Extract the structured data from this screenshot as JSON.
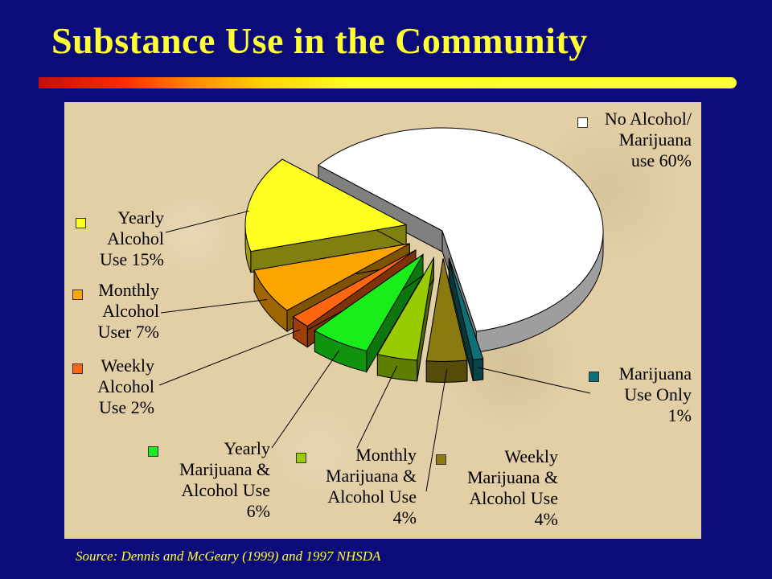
{
  "title": "Substance Use in the Community",
  "source": "Source: Dennis and McGeary (1999) and 1997 NHSDA",
  "colors": {
    "background": "#0b0b7a",
    "title": "#ffff33",
    "panel": "#e2cfa6"
  },
  "chart_data": {
    "type": "pie",
    "style": "3d-exploded",
    "slices": [
      {
        "key": "no_use",
        "label_lines": [
          "No Alcohol/",
          "Marijuana",
          "use 60%"
        ],
        "value": 60,
        "color": "#ffffff"
      },
      {
        "key": "marijuana_only",
        "label_lines": [
          "Marijuana",
          "Use Only",
          "1%"
        ],
        "value": 1,
        "color": "#0d6f78"
      },
      {
        "key": "weekly_mj_alc",
        "label_lines": [
          "Weekly",
          "Marijuana &",
          "Alcohol Use",
          "4%"
        ],
        "value": 4,
        "color": "#8a7a10"
      },
      {
        "key": "monthly_mj_alc",
        "label_lines": [
          "Monthly",
          "Marijuana &",
          "Alcohol Use",
          "4%"
        ],
        "value": 4,
        "color": "#99cc00"
      },
      {
        "key": "yearly_mj_alc",
        "label_lines": [
          "Yearly",
          "Marijuana &",
          "Alcohol Use",
          "6%"
        ],
        "value": 6,
        "color": "#1aee1a"
      },
      {
        "key": "weekly_alc",
        "label_lines": [
          "Weekly",
          "Alcohol",
          "Use 2%"
        ],
        "value": 2,
        "color": "#ff6611"
      },
      {
        "key": "monthly_alc",
        "label_lines": [
          "Monthly",
          "Alcohol",
          "User 7%"
        ],
        "value": 7,
        "color": "#ffa500"
      },
      {
        "key": "yearly_alc",
        "label_lines": [
          "Yearly",
          "Alcohol",
          "Use 15%"
        ],
        "value": 15,
        "color": "#ffff22"
      }
    ]
  }
}
